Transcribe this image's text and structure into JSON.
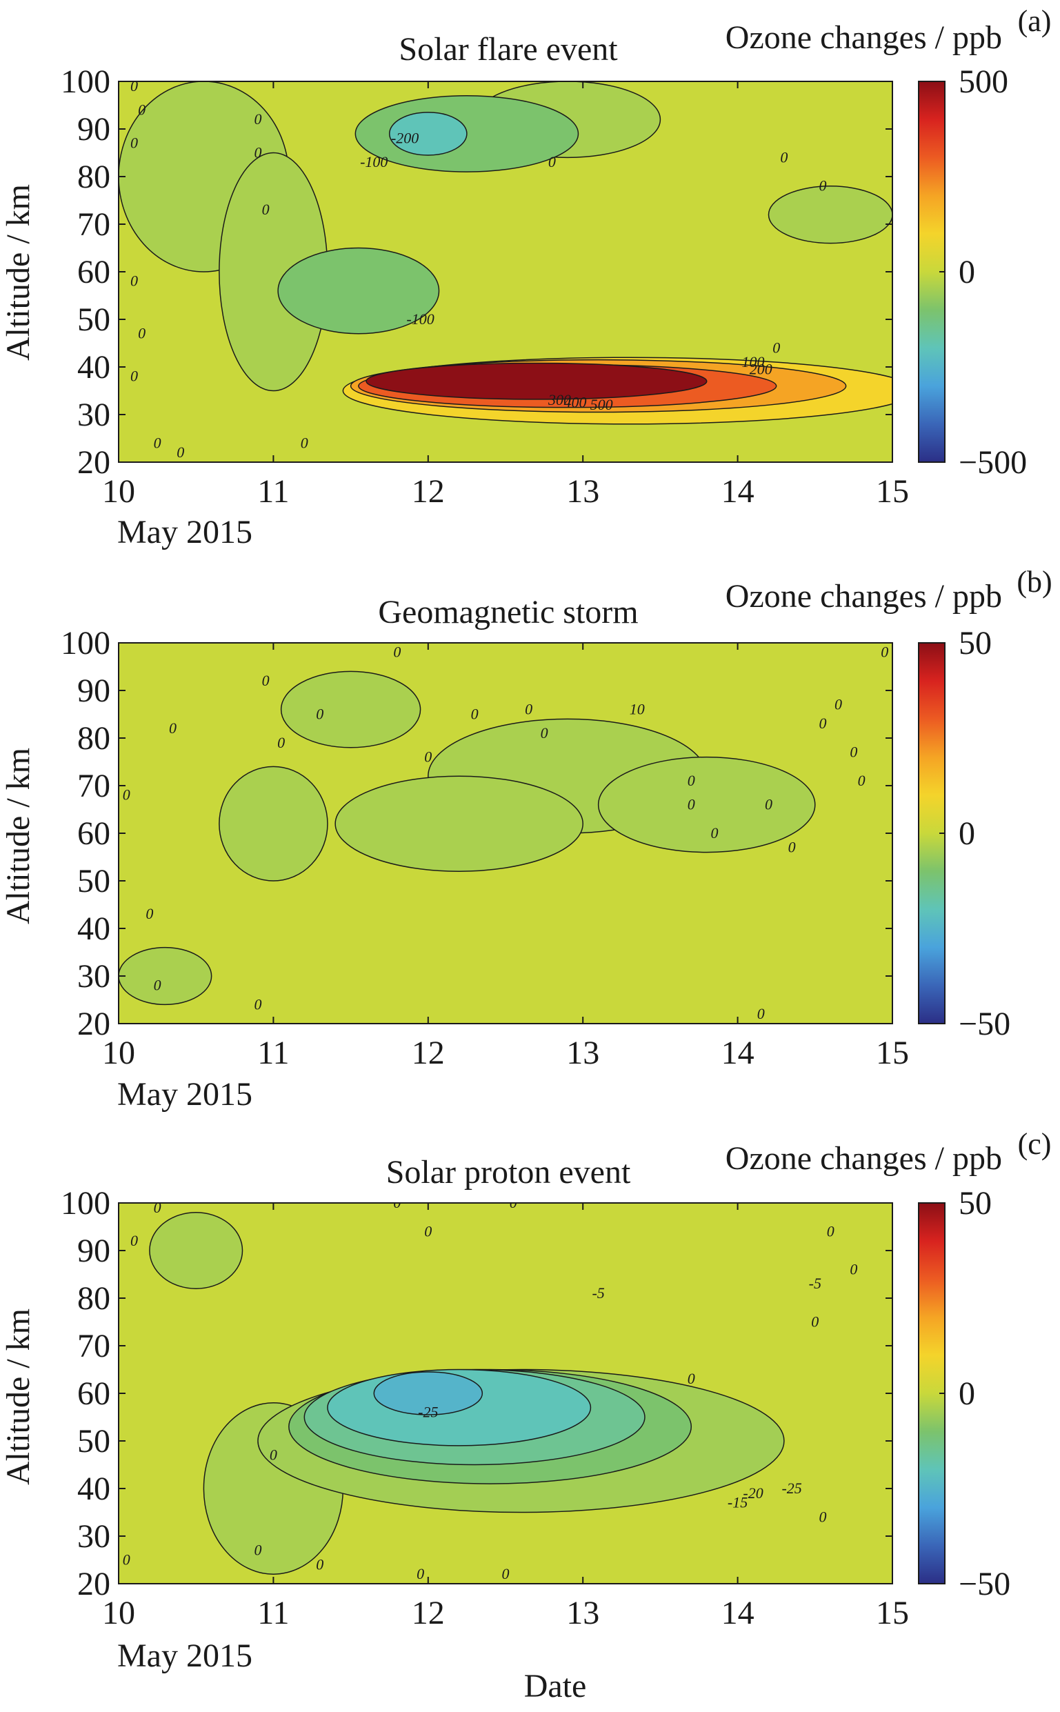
{
  "figure": {
    "xlabel": "Date",
    "colorbar_palette": [
      "#2b2f86",
      "#3a66b8",
      "#4aa3dc",
      "#5fc4b8",
      "#7cc36c",
      "#c9d83b",
      "#f4d42b",
      "#f5a424",
      "#ec5b22",
      "#d8231f",
      "#8c0f16"
    ]
  },
  "chart_data": [
    {
      "type": "contour",
      "panel_id": "(a)",
      "title": "Solar flare event",
      "colorbar_label": "Ozone changes / ppb",
      "colorbar_ticks": [
        "500",
        "0",
        "−500"
      ],
      "clim": [
        -500,
        500
      ],
      "ylabel": "Altitude / km",
      "xlabel": "May 2015",
      "x_ticks": [
        "10",
        "11",
        "12",
        "13",
        "14",
        "15"
      ],
      "y_ticks": [
        "100",
        "90",
        "80",
        "70",
        "60",
        "50",
        "40",
        "30",
        "20"
      ],
      "xlim": [
        10,
        15
      ],
      "ylim": [
        20,
        100
      ],
      "background_value": 0,
      "features": [
        {
          "value": -100,
          "x_center": 12.25,
          "y_center": 89,
          "x_halfwidth": 0.72,
          "y_halfwidth": 8
        },
        {
          "value": -200,
          "x_center": 12.0,
          "y_center": 89,
          "x_halfwidth": 0.25,
          "y_halfwidth": 4.5
        },
        {
          "value": -100,
          "x_center": 11.55,
          "y_center": 56,
          "x_halfwidth": 0.52,
          "y_halfwidth": 9
        },
        {
          "value": 100,
          "x_center": 13.3,
          "y_center": 35,
          "x_halfwidth": 1.85,
          "y_halfwidth": 7
        },
        {
          "value": 200,
          "x_center": 13.1,
          "y_center": 36,
          "x_halfwidth": 1.6,
          "y_halfwidth": 5.5
        },
        {
          "value": 300,
          "x_center": 12.9,
          "y_center": 36,
          "x_halfwidth": 1.35,
          "y_halfwidth": 4.5
        },
        {
          "value": 500,
          "x_center": 12.7,
          "y_center": 37,
          "x_halfwidth": 1.1,
          "y_halfwidth": 3.8
        }
      ],
      "contour_labels": [
        {
          "text": "0",
          "x": 10.1,
          "y": 98
        },
        {
          "text": "0",
          "x": 10.15,
          "y": 93
        },
        {
          "text": "0",
          "x": 10.1,
          "y": 86
        },
        {
          "text": "0",
          "x": 10.9,
          "y": 91
        },
        {
          "text": "0",
          "x": 10.9,
          "y": 84
        },
        {
          "text": "0",
          "x": 10.95,
          "y": 72
        },
        {
          "text": "0",
          "x": 12.8,
          "y": 82
        },
        {
          "text": "0",
          "x": 14.3,
          "y": 83
        },
        {
          "text": "0",
          "x": 14.55,
          "y": 77
        },
        {
          "text": "0",
          "x": 10.1,
          "y": 57
        },
        {
          "text": "0",
          "x": 10.15,
          "y": 46
        },
        {
          "text": "0",
          "x": 10.1,
          "y": 37
        },
        {
          "text": "0",
          "x": 10.25,
          "y": 23
        },
        {
          "text": "0",
          "x": 10.4,
          "y": 21
        },
        {
          "text": "0",
          "x": 11.2,
          "y": 23
        },
        {
          "text": "0",
          "x": 14.25,
          "y": 43
        },
        {
          "text": "-100",
          "x": 11.65,
          "y": 82
        },
        {
          "text": "-200",
          "x": 11.85,
          "y": 87
        },
        {
          "text": "-100",
          "x": 11.95,
          "y": 49
        },
        {
          "text": "100",
          "x": 14.1,
          "y": 40
        },
        {
          "text": "200",
          "x": 14.15,
          "y": 38.5
        },
        {
          "text": "300",
          "x": 12.85,
          "y": 32
        },
        {
          "text": "400",
          "x": 12.95,
          "y": 31.5
        },
        {
          "text": "500",
          "x": 13.12,
          "y": 31
        }
      ]
    },
    {
      "type": "contour",
      "panel_id": "(b)",
      "title": "Geomagnetic storm",
      "colorbar_label": "Ozone changes / ppb",
      "colorbar_ticks": [
        "50",
        "0",
        "−50"
      ],
      "clim": [
        -50,
        50
      ],
      "ylabel": "Altitude / km",
      "xlabel": "May 2015",
      "x_ticks": [
        "10",
        "11",
        "12",
        "13",
        "14",
        "15"
      ],
      "y_ticks": [
        "100",
        "90",
        "80",
        "70",
        "60",
        "50",
        "40",
        "30",
        "20"
      ],
      "xlim": [
        10,
        15
      ],
      "ylim": [
        20,
        100
      ],
      "background_value": 0,
      "features": [],
      "contour_labels": [
        {
          "text": "0",
          "x": 11.8,
          "y": 97
        },
        {
          "text": "0",
          "x": 10.95,
          "y": 91
        },
        {
          "text": "0",
          "x": 11.3,
          "y": 84
        },
        {
          "text": "0",
          "x": 10.35,
          "y": 81
        },
        {
          "text": "0",
          "x": 11.05,
          "y": 78
        },
        {
          "text": "0",
          "x": 12.0,
          "y": 75
        },
        {
          "text": "0",
          "x": 12.3,
          "y": 84
        },
        {
          "text": "0",
          "x": 12.75,
          "y": 80
        },
        {
          "text": "0",
          "x": 12.65,
          "y": 85
        },
        {
          "text": "10",
          "x": 13.35,
          "y": 85
        },
        {
          "text": "0",
          "x": 13.7,
          "y": 70
        },
        {
          "text": "0",
          "x": 13.7,
          "y": 65
        },
        {
          "text": "0",
          "x": 14.2,
          "y": 65
        },
        {
          "text": "0",
          "x": 13.85,
          "y": 59
        },
        {
          "text": "0",
          "x": 14.35,
          "y": 56
        },
        {
          "text": "0",
          "x": 14.55,
          "y": 82
        },
        {
          "text": "0",
          "x": 14.75,
          "y": 76
        },
        {
          "text": "0",
          "x": 14.8,
          "y": 70
        },
        {
          "text": "0",
          "x": 14.95,
          "y": 97
        },
        {
          "text": "0",
          "x": 14.65,
          "y": 86
        },
        {
          "text": "0",
          "x": 10.05,
          "y": 67
        },
        {
          "text": "0",
          "x": 10.2,
          "y": 42
        },
        {
          "text": "0",
          "x": 10.25,
          "y": 27
        },
        {
          "text": "0",
          "x": 10.9,
          "y": 23
        },
        {
          "text": "0",
          "x": 14.15,
          "y": 21
        }
      ]
    },
    {
      "type": "contour",
      "panel_id": "(c)",
      "title": "Solar proton event",
      "colorbar_label": "Ozone changes / ppb",
      "colorbar_ticks": [
        "50",
        "0",
        "−50"
      ],
      "clim": [
        -50,
        50
      ],
      "ylabel": "Altitude / km",
      "xlabel": "May 2015",
      "x_ticks": [
        "10",
        "11",
        "12",
        "13",
        "14",
        "15"
      ],
      "y_ticks": [
        "100",
        "90",
        "80",
        "70",
        "60",
        "50",
        "40",
        "30",
        "20"
      ],
      "xlim": [
        10,
        15
      ],
      "ylim": [
        20,
        100
      ],
      "background_value": 0,
      "features": [
        {
          "value": -5,
          "x_center": 12.6,
          "y_center": 50,
          "x_halfwidth": 1.7,
          "y_halfwidth": 15
        },
        {
          "value": -10,
          "x_center": 12.4,
          "y_center": 53,
          "x_halfwidth": 1.3,
          "y_halfwidth": 12
        },
        {
          "value": -15,
          "x_center": 12.3,
          "y_center": 55,
          "x_halfwidth": 1.1,
          "y_halfwidth": 10
        },
        {
          "value": -20,
          "x_center": 12.2,
          "y_center": 57,
          "x_halfwidth": 0.85,
          "y_halfwidth": 8
        },
        {
          "value": -25,
          "x_center": 12.0,
          "y_center": 60,
          "x_halfwidth": 0.35,
          "y_halfwidth": 4.5
        }
      ],
      "contour_labels": [
        {
          "text": "0",
          "x": 10.25,
          "y": 98
        },
        {
          "text": "0",
          "x": 10.1,
          "y": 91
        },
        {
          "text": "0",
          "x": 11.8,
          "y": 99
        },
        {
          "text": "0",
          "x": 12.0,
          "y": 93
        },
        {
          "text": "0",
          "x": 12.55,
          "y": 99
        },
        {
          "text": "0",
          "x": 14.6,
          "y": 93
        },
        {
          "text": "0",
          "x": 14.75,
          "y": 85
        },
        {
          "text": "0",
          "x": 14.5,
          "y": 74
        },
        {
          "text": "0",
          "x": 13.7,
          "y": 62
        },
        {
          "text": "0",
          "x": 11.0,
          "y": 46
        },
        {
          "text": "0",
          "x": 10.9,
          "y": 26
        },
        {
          "text": "0",
          "x": 11.3,
          "y": 23
        },
        {
          "text": "0",
          "x": 10.05,
          "y": 24
        },
        {
          "text": "0",
          "x": 11.95,
          "y": 21
        },
        {
          "text": "0",
          "x": 12.5,
          "y": 21
        },
        {
          "text": "0",
          "x": 14.55,
          "y": 33
        },
        {
          "text": "-5",
          "x": 13.1,
          "y": 80
        },
        {
          "text": "-5",
          "x": 14.5,
          "y": 82
        },
        {
          "text": "-25",
          "x": 12.0,
          "y": 55
        },
        {
          "text": "-25",
          "x": 14.35,
          "y": 39
        },
        {
          "text": "-20",
          "x": 14.1,
          "y": 38
        },
        {
          "text": "-15",
          "x": 14.0,
          "y": 36
        }
      ]
    }
  ]
}
